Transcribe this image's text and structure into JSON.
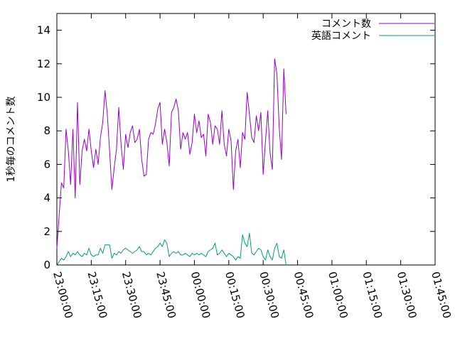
{
  "chart_data": {
    "type": "line",
    "title": "",
    "xlabel": "",
    "ylabel": "1秒毎のコメント数",
    "ylim": [
      0,
      15
    ],
    "yticks": [
      0,
      2,
      4,
      6,
      8,
      10,
      12,
      14
    ],
    "xlim": [
      "23:00:00",
      "01:45:00"
    ],
    "xticks": [
      "23:00:00",
      "23:15:00",
      "23:30:00",
      "23:45:00",
      "00:00:00",
      "00:15:00",
      "00:30:00",
      "00:45:00",
      "01:00:00",
      "01:15:00",
      "01:30:00",
      "01:45:00"
    ],
    "grid": false,
    "legend": "top-right",
    "x_start": "23:00:00",
    "x_step": "00:01:00",
    "series": [
      {
        "name": "コメント数",
        "color": "#9400d3",
        "values": [
          1.0,
          3.0,
          4.9,
          4.6,
          8.1,
          6.8,
          4.8,
          8.1,
          4.0,
          9.7,
          4.8,
          6.8,
          7.5,
          6.8,
          8.1,
          6.8,
          5.8,
          6.9,
          6.0,
          7.6,
          8.5,
          10.4,
          9.0,
          6.8,
          4.5,
          5.8,
          6.9,
          9.4,
          7.2,
          5.7,
          7.8,
          7.0,
          7.9,
          8.3,
          7.3,
          7.5,
          8.1,
          6.3,
          5.3,
          5.4,
          7.5,
          7.9,
          7.8,
          8.4,
          9.3,
          9.7,
          7.2,
          8.1,
          7.3,
          5.9,
          9.1,
          9.4,
          9.9,
          9.2,
          6.9,
          7.9,
          7.5,
          7.9,
          6.6,
          7.3,
          9.0,
          7.9,
          8.6,
          7.6,
          7.8,
          6.5,
          9.0,
          8.5,
          7.2,
          8.3,
          8.1,
          7.2,
          9.2,
          7.2,
          6.5,
          8.1,
          7.4,
          4.5,
          6.8,
          7.5,
          5.8,
          7.9,
          7.5,
          10.3,
          9.0,
          7.6,
          7.3,
          8.9,
          8.0,
          9.1,
          5.4,
          7.4,
          9.2,
          6.7,
          5.7,
          12.3,
          11.4,
          8.2,
          6.3,
          11.7,
          9.0
        ]
      },
      {
        "name": "英語コメント",
        "color": "#009e73",
        "values": [
          0.0,
          0.2,
          0.4,
          0.3,
          0.5,
          0.8,
          0.5,
          0.7,
          0.6,
          0.8,
          0.6,
          0.5,
          0.7,
          0.6,
          1.0,
          0.6,
          0.5,
          0.6,
          0.6,
          1.0,
          0.7,
          1.2,
          1.2,
          1.2,
          0.4,
          0.7,
          0.6,
          0.8,
          0.7,
          0.9,
          1.0,
          0.9,
          0.8,
          0.7,
          0.8,
          0.9,
          1.1,
          0.8,
          0.8,
          0.6,
          0.7,
          0.6,
          0.8,
          1.0,
          1.1,
          1.3,
          1.1,
          1.5,
          1.3,
          0.5,
          0.7,
          0.8,
          0.7,
          0.8,
          0.6,
          0.6,
          0.7,
          0.6,
          0.5,
          0.7,
          0.6,
          0.7,
          0.6,
          0.7,
          0.6,
          0.5,
          0.8,
          0.9,
          1.0,
          1.3,
          0.6,
          0.7,
          0.9,
          0.7,
          0.5,
          0.7,
          0.6,
          0.5,
          0.3,
          0.5,
          0.4,
          1.8,
          1.3,
          1.1,
          1.9,
          0.7,
          0.6,
          0.8,
          1.0,
          0.9,
          0.5,
          0.3,
          0.9,
          0.5,
          0.3,
          1.0,
          1.3,
          0.5,
          0.4,
          0.9,
          0.0
        ]
      }
    ]
  }
}
